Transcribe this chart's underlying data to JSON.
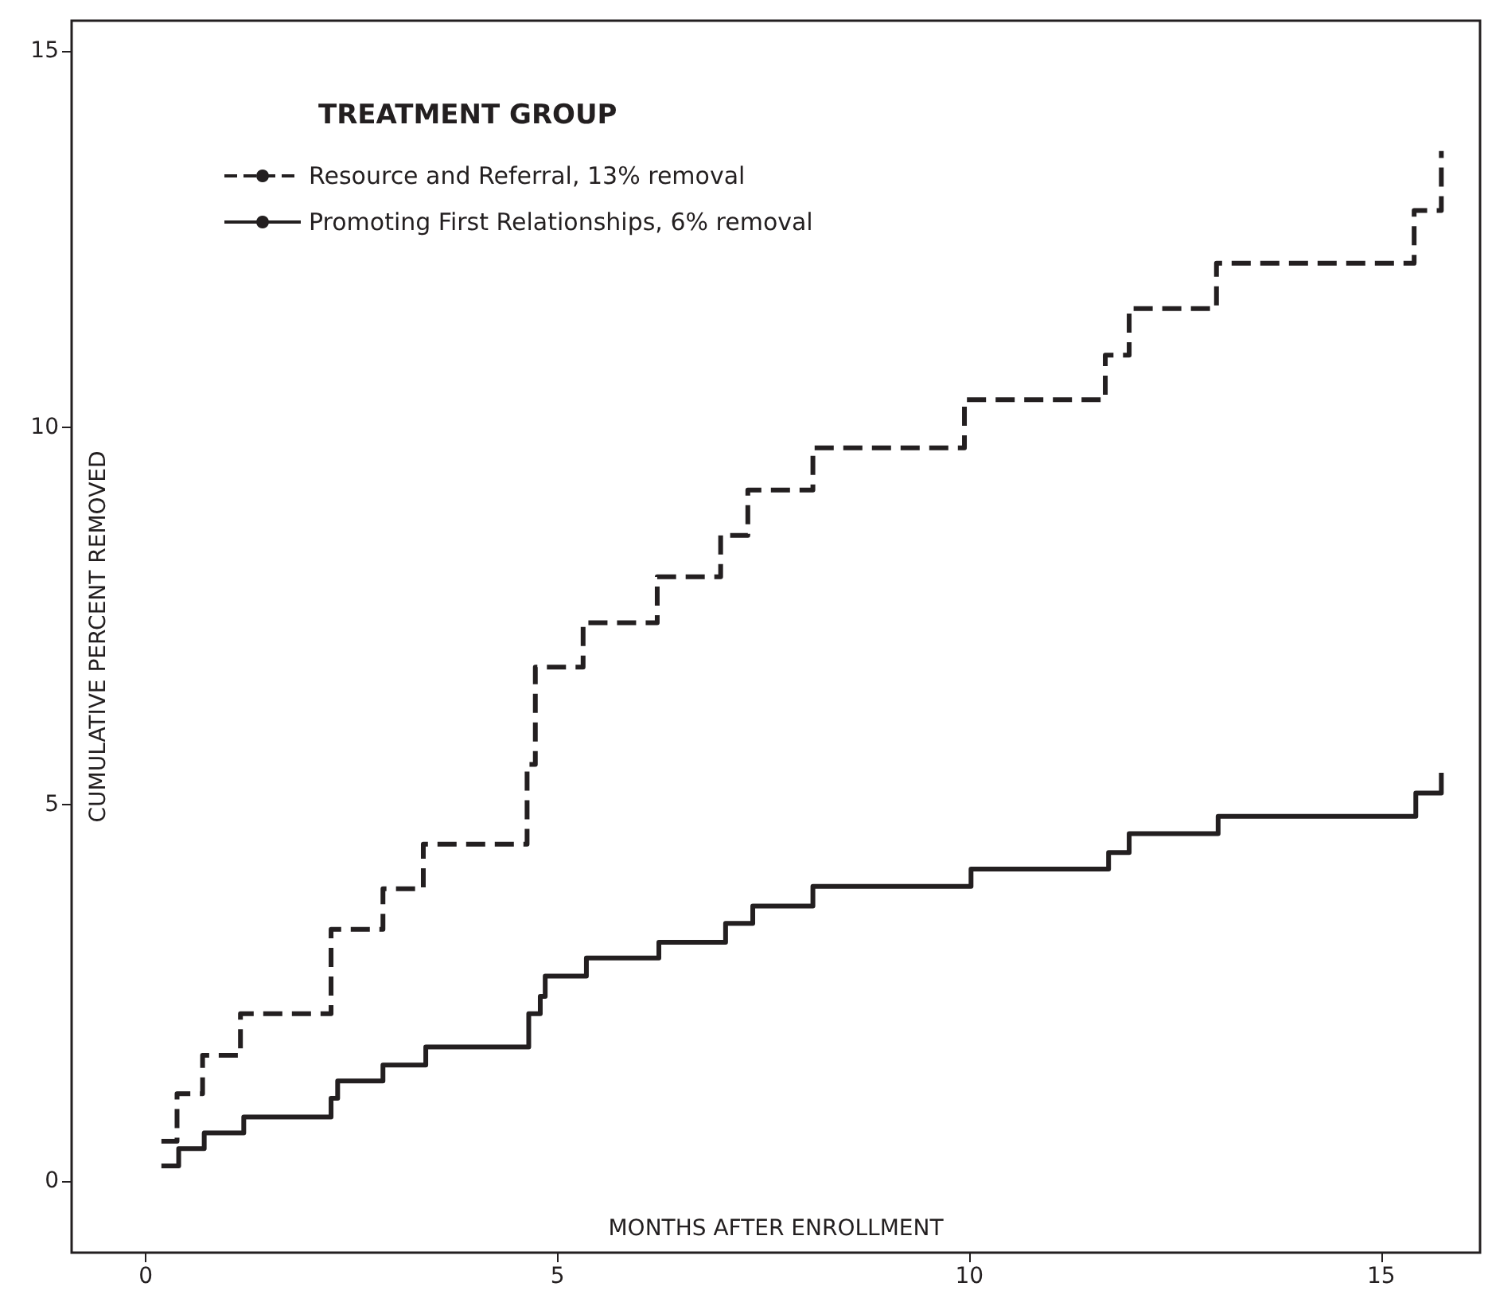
{
  "chart_data": {
    "type": "step",
    "xlabel": "MONTHS AFTER ENROLLMENT",
    "ylabel": "CUMULATIVE PERCENT REMOVED",
    "legend_title": "TREATMENT GROUP",
    "legend": "top left",
    "grid": false,
    "marker": "none",
    "xlim": [
      -0.9,
      16.2
    ],
    "ylim": [
      -0.95,
      15.4
    ],
    "xticks": [
      0,
      5,
      10,
      15
    ],
    "yticks": [
      0,
      5,
      10,
      15
    ],
    "series": [
      {
        "name": "Resource and Referral, 13% removal",
        "color": "#231f20",
        "line_style": "dashed",
        "x": [
          0.19,
          0.38,
          0.69,
          1.15,
          2.25,
          2.88,
          3.37,
          4.63,
          4.73,
          5.31,
          6.21,
          6.98,
          7.31,
          8.1,
          9.94,
          11.65,
          11.94,
          13.0,
          15.4,
          15.73
        ],
        "values": [
          0.53,
          1.16,
          1.67,
          2.22,
          3.34,
          3.88,
          4.47,
          5.53,
          6.82,
          7.41,
          8.02,
          8.57,
          9.17,
          9.73,
          10.37,
          10.96,
          11.58,
          12.18,
          12.88,
          13.67
        ]
      },
      {
        "name": "Promoting First Relationships, 6% removal",
        "color": "#231f20",
        "line_style": "solid",
        "x": [
          0.19,
          0.4,
          0.71,
          1.19,
          2.25,
          2.33,
          2.88,
          3.4,
          4.65,
          4.79,
          4.85,
          5.35,
          6.23,
          7.04,
          7.37,
          8.1,
          10.02,
          11.69,
          11.94,
          13.02,
          15.42,
          15.73
        ],
        "values": [
          0.2,
          0.43,
          0.64,
          0.85,
          1.1,
          1.33,
          1.54,
          1.78,
          2.22,
          2.45,
          2.72,
          2.96,
          3.17,
          3.42,
          3.65,
          3.91,
          4.14,
          4.36,
          4.61,
          4.84,
          5.15,
          5.42
        ]
      }
    ]
  }
}
